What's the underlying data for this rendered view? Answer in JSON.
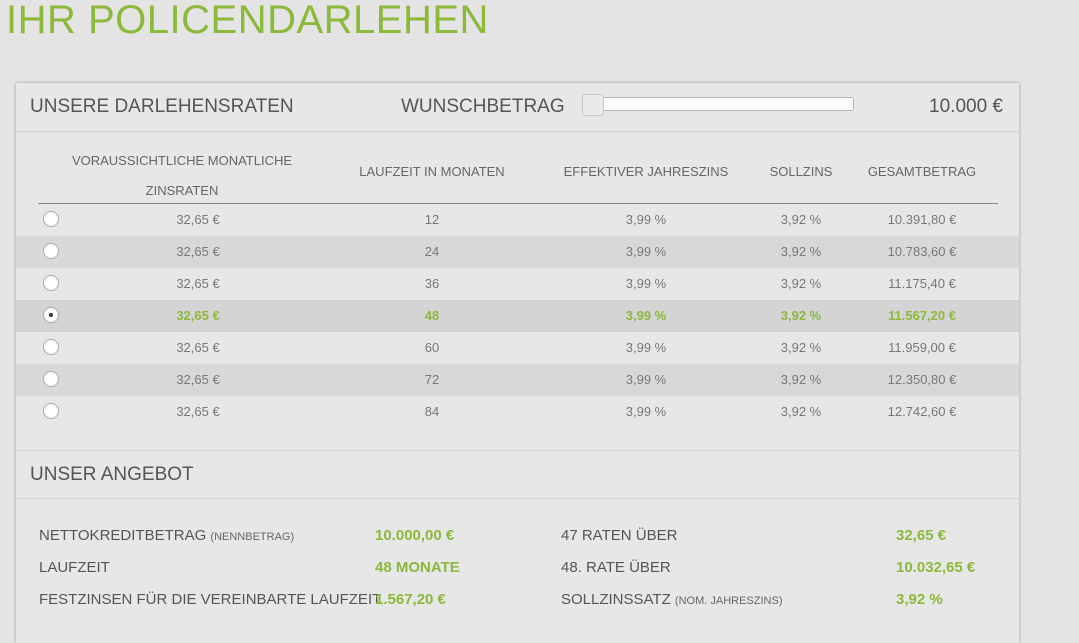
{
  "page_title": "IHR POLICENDARLEHEN",
  "rates_section": {
    "title": "UNSERE DARLEHENSRATEN",
    "wunsch_label": "WUNSCHBETRAG",
    "wunsch_value": "10.000 €",
    "slider_level": 0
  },
  "table": {
    "headers": {
      "rate_line1": "VORAUSSICHTLICHE MONATLICHE",
      "rate_line2": "ZINSRATEN",
      "laufzeit": "LAUFZEIT IN MONATEN",
      "eff_zins": "EFFEKTIVER JAHRESZINS",
      "sollzins": "SOLLZINS",
      "gesamt": "GESAMTBETRAG"
    },
    "rows": [
      {
        "rate": "32,65 €",
        "laufzeit": "12",
        "eff": "3,99 %",
        "soll": "3,92 %",
        "gesamt": "10.391,80 €",
        "selected": false
      },
      {
        "rate": "32,65 €",
        "laufzeit": "24",
        "eff": "3,99 %",
        "soll": "3,92 %",
        "gesamt": "10.783,60 €",
        "selected": false
      },
      {
        "rate": "32,65 €",
        "laufzeit": "36",
        "eff": "3,99 %",
        "soll": "3,92 %",
        "gesamt": "11.175,40 €",
        "selected": false
      },
      {
        "rate": "32,65 €",
        "laufzeit": "48",
        "eff": "3,99 %",
        "soll": "3,92 %",
        "gesamt": "11.567,20 €",
        "selected": true
      },
      {
        "rate": "32,65 €",
        "laufzeit": "60",
        "eff": "3,99 %",
        "soll": "3,92 %",
        "gesamt": "11.959,00 €",
        "selected": false
      },
      {
        "rate": "32,65 €",
        "laufzeit": "72",
        "eff": "3,99 %",
        "soll": "3,92 %",
        "gesamt": "12.350,80 €",
        "selected": false
      },
      {
        "rate": "32,65 €",
        "laufzeit": "84",
        "eff": "3,99 %",
        "soll": "3,92 %",
        "gesamt": "12.742,60 €",
        "selected": false
      }
    ]
  },
  "offer_section": {
    "title": "UNSER ANGEBOT",
    "netto_label": "NETTOKREDITBETRAG",
    "netto_sub": "(NENNBETRAG)",
    "netto_value": "10.000,00 €",
    "laufzeit_label": "LAUFZEIT",
    "laufzeit_value": "48 MONATE",
    "festzins_label": "FESTZINSEN FÜR DIE VEREINBARTE LAUFZEIT",
    "festzins_value": "1.567,20 €",
    "raten_label": "47 RATEN ÜBER",
    "raten_value": "32,65 €",
    "last_rate_label": "48. RATE ÜBER",
    "last_rate_value": "10.032,65 €",
    "sollzins_label": "SOLLZINSSATZ",
    "sollzins_sub": "(NOM. JAHRESZINS)",
    "sollzins_value": "3,92 %"
  },
  "colors": {
    "accent_green": "#8bb93a",
    "background": "#e4e4e4"
  }
}
